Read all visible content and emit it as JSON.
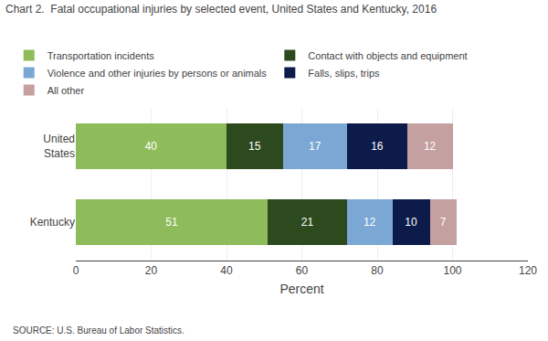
{
  "chart_data": {
    "type": "bar",
    "orientation": "horizontal",
    "stacked": true,
    "data_labels": true,
    "title": "Chart 2.  Fatal occupational injuries by selected event, United States and Kentucky, 2016",
    "xlabel": "Percent",
    "annotations": [
      "SOURCE: U.S. Bureau of Labor Statistics."
    ],
    "categories": [
      "Kentucky",
      "United\nStates"
    ],
    "series": [
      {
        "name": "Transportation incidents",
        "color": "#8fbc5a",
        "values": [
          51,
          40
        ]
      },
      {
        "name": "Contact with objects and equipment",
        "color": "#2d4a1e",
        "values": [
          21,
          15
        ]
      },
      {
        "name": "Violence and other injuries by persons or animals",
        "color": "#7ba7d4",
        "values": [
          12,
          17
        ]
      },
      {
        "name": "Falls, slips, trips",
        "color": "#0d1b4b",
        "values": [
          10,
          16
        ]
      },
      {
        "name": "All other",
        "color": "#c4a0a0",
        "values": [
          7,
          12
        ]
      }
    ],
    "xlim": [
      0,
      120
    ],
    "xticks": [
      0,
      20,
      40,
      60,
      80,
      100,
      120
    ],
    "grid": true,
    "legend": "top"
  }
}
